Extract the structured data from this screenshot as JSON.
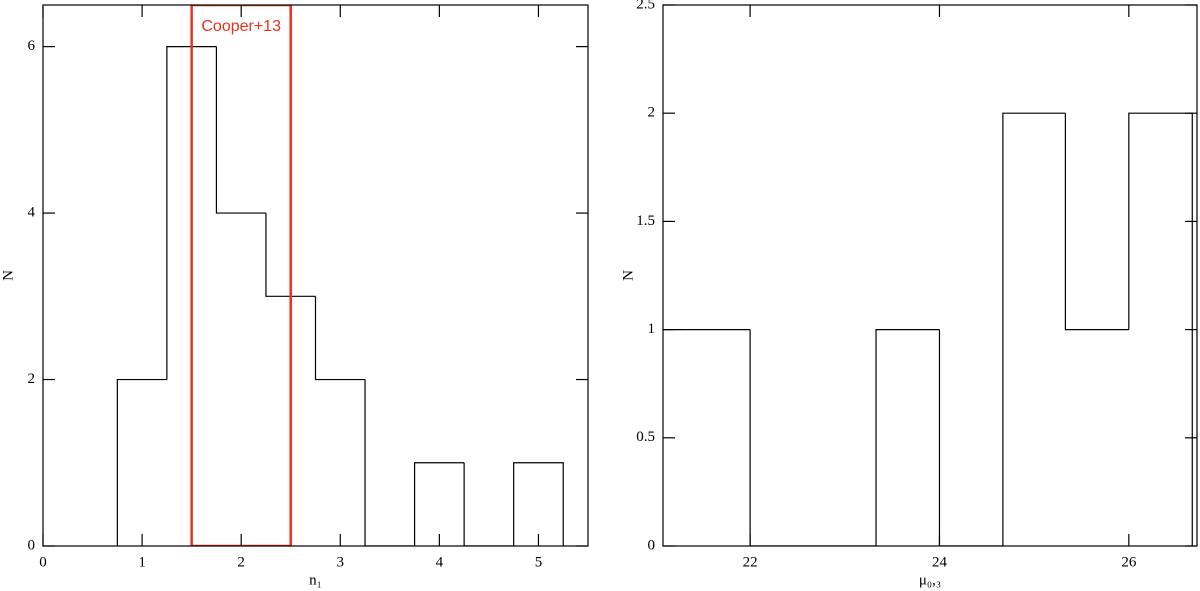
{
  "chart_data": [
    {
      "type": "histogram",
      "xlabel": "n₁",
      "ylabel": "N",
      "bins": [
        0.75,
        1.25,
        1.75,
        2.25,
        2.75,
        3.25,
        3.75,
        4.25,
        4.75,
        5.25
      ],
      "values": [
        2,
        6,
        4,
        3,
        2,
        0,
        1,
        0,
        1
      ],
      "color": "#000000",
      "xlim": [
        0,
        5.5
      ],
      "ylim": [
        0,
        6.5
      ],
      "xticks": [
        0,
        1,
        2,
        3,
        4,
        5
      ],
      "yticks": [
        0,
        2,
        4,
        6
      ],
      "highlight": {
        "label": "Cooper+13",
        "xrange": [
          1.5,
          2.5
        ],
        "color": "#e8321e"
      }
    },
    {
      "type": "histogram",
      "xlabel": "μ₀,₃",
      "ylabel": "N",
      "bins": [
        20.67,
        21.33,
        22.0,
        22.67,
        23.33,
        24.0,
        24.67,
        25.33,
        26.0,
        26.67
      ],
      "values": [
        1,
        1,
        0,
        0,
        1,
        0,
        2,
        1,
        2
      ],
      "color": "#000000",
      "xlim": [
        21.08,
        26.72
      ],
      "ylim": [
        0,
        2.5
      ],
      "xticks": [
        22,
        24,
        26
      ],
      "yticks": [
        0,
        0.5,
        1,
        1.5,
        2,
        2.5
      ]
    }
  ]
}
